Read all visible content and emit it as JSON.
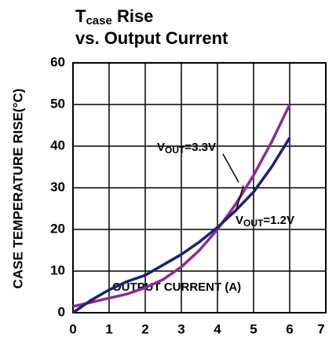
{
  "chart_data": {
    "type": "line",
    "title": [
      "T",
      "case",
      " Rise"
    ],
    "subtitle": "vs. Output Current",
    "xlabel": "OUTPUT CURRENT (A)",
    "ylabel": "CASE TEMPERATURE RISE(°C)",
    "xlim": [
      0,
      7
    ],
    "xticks": [
      0,
      1,
      2,
      3,
      4,
      5,
      6,
      7
    ],
    "ylim": [
      0,
      60
    ],
    "yticks": [
      0,
      10,
      20,
      30,
      40,
      50,
      60
    ],
    "grid": true,
    "x": [
      0,
      0.5,
      1,
      1.5,
      2,
      2.5,
      3,
      3.5,
      4,
      4.5,
      5,
      5.5,
      6
    ],
    "series": [
      {
        "name": [
          "V",
          "OUT",
          "=3.3V"
        ],
        "color": "#8e2a95",
        "values": [
          1.5,
          2.5,
          3.5,
          4.5,
          6,
          8,
          11,
          15,
          20,
          26,
          33,
          41,
          50
        ]
      },
      {
        "name": [
          "V",
          "OUT",
          "=1.2V"
        ],
        "color": "#1b2170",
        "values": [
          0,
          3,
          5.5,
          7.5,
          9,
          11.5,
          14,
          17,
          20.5,
          24.5,
          29,
          35,
          42
        ]
      }
    ]
  }
}
